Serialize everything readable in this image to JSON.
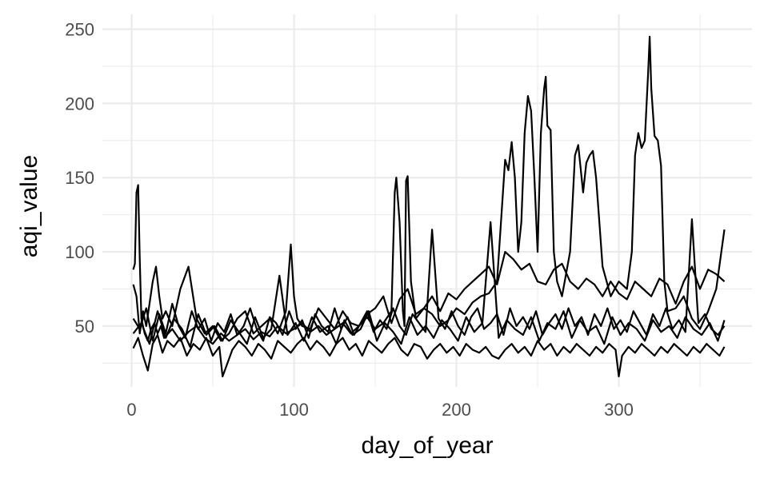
{
  "chart_data": {
    "type": "line",
    "title": "",
    "xlabel": "day_of_year",
    "ylabel": "aqi_value",
    "xlim": [
      -18,
      382
    ],
    "ylim": [
      9,
      260
    ],
    "x_ticks": [
      0,
      100,
      200,
      300
    ],
    "y_ticks": [
      50,
      100,
      150,
      200,
      250
    ],
    "x_tick_labels": [
      "0",
      "100",
      "200",
      "300"
    ],
    "y_tick_labels": [
      "50",
      "100",
      "150",
      "200",
      "250"
    ],
    "grid": true,
    "legend": "none",
    "line_color": "#000000",
    "series": [
      {
        "x": [
          1,
          2,
          3,
          4,
          5,
          6,
          8,
          10,
          12,
          14,
          16,
          18,
          20,
          25,
          30,
          35,
          40,
          45,
          50,
          55,
          60,
          65,
          70,
          75,
          80,
          85,
          90,
          95,
          100,
          105,
          110,
          115,
          120,
          125,
          130,
          135,
          140,
          145,
          150,
          155,
          160,
          162,
          163,
          165,
          167,
          168,
          169,
          170,
          172,
          175,
          180,
          185,
          190,
          195,
          200,
          205,
          210,
          215,
          220,
          225,
          230,
          232,
          234,
          236,
          238,
          240,
          242,
          244,
          246,
          248,
          250,
          252,
          254,
          255,
          256,
          258,
          260,
          262,
          265,
          270,
          273,
          275,
          278,
          280,
          282,
          284,
          286,
          288,
          290,
          295,
          300,
          305,
          308,
          310,
          312,
          314,
          316,
          318,
          319,
          320,
          322,
          324,
          326,
          328,
          330,
          335,
          340,
          345,
          350,
          355,
          360,
          365
        ],
        "y": [
          88,
          92,
          140,
          145,
          95,
          55,
          45,
          40,
          48,
          52,
          45,
          50,
          42,
          48,
          40,
          46,
          50,
          42,
          38,
          45,
          40,
          44,
          48,
          41,
          46,
          43,
          50,
          45,
          48,
          52,
          46,
          50,
          44,
          48,
          52,
          45,
          50,
          56,
          48,
          52,
          60,
          140,
          150,
          120,
          60,
          50,
          148,
          151,
          80,
          55,
          62,
          58,
          50,
          54,
          62,
          58,
          66,
          70,
          72,
          80,
          162,
          155,
          174,
          150,
          100,
          120,
          180,
          205,
          195,
          150,
          100,
          180,
          210,
          218,
          185,
          182,
          100,
          80,
          70,
          100,
          165,
          172,
          140,
          160,
          165,
          168,
          150,
          120,
          90,
          70,
          80,
          75,
          100,
          165,
          180,
          170,
          175,
          220,
          245,
          210,
          178,
          175,
          158,
          80,
          60,
          62,
          70,
          55,
          48,
          60,
          75,
          115
        ]
      },
      {
        "x": [
          1,
          3,
          5,
          7,
          9,
          11,
          13,
          15,
          17,
          19,
          21,
          25,
          30,
          35,
          40,
          45,
          50,
          55,
          60,
          65,
          70,
          75,
          80,
          85,
          90,
          95,
          98,
          100,
          102,
          105,
          110,
          115,
          120,
          125,
          130,
          135,
          140,
          145,
          150,
          155,
          160,
          165,
          170,
          175,
          180,
          185,
          190,
          195,
          200,
          205,
          210,
          215,
          220,
          225,
          230,
          235,
          240,
          245,
          250,
          255,
          260,
          265,
          270,
          275,
          280,
          285,
          290,
          295,
          300,
          305,
          310,
          315,
          320,
          325,
          330,
          335,
          340,
          345,
          350,
          355,
          360,
          365
        ],
        "y": [
          78,
          70,
          45,
          60,
          50,
          65,
          80,
          90,
          70,
          55,
          60,
          50,
          75,
          90,
          55,
          45,
          50,
          40,
          45,
          55,
          60,
          45,
          50,
          55,
          45,
          60,
          105,
          70,
          55,
          50,
          48,
          62,
          55,
          48,
          60,
          52,
          50,
          58,
          62,
          70,
          52,
          68,
          75,
          58,
          62,
          70,
          60,
          72,
          68,
          75,
          80,
          85,
          90,
          78,
          100,
          95,
          88,
          92,
          80,
          78,
          88,
          92,
          80,
          75,
          82,
          78,
          70,
          80,
          72,
          68,
          80,
          75,
          70,
          82,
          78,
          65,
          80,
          90,
          75,
          88,
          85,
          80
        ]
      },
      {
        "x": [
          1,
          4,
          7,
          10,
          13,
          16,
          19,
          22,
          26,
          30,
          34,
          38,
          42,
          46,
          50,
          54,
          56,
          58,
          62,
          66,
          70,
          74,
          78,
          82,
          86,
          90,
          94,
          98,
          102,
          106,
          110,
          114,
          118,
          122,
          126,
          130,
          134,
          138,
          142,
          146,
          150,
          154,
          158,
          162,
          166,
          170,
          174,
          178,
          182,
          186,
          190,
          194,
          198,
          202,
          206,
          210,
          214,
          218,
          222,
          226,
          230,
          234,
          238,
          242,
          246,
          250,
          254,
          258,
          262,
          266,
          270,
          274,
          278,
          282,
          286,
          290,
          294,
          298,
          300,
          302,
          306,
          310,
          314,
          318,
          322,
          326,
          330,
          334,
          338,
          342,
          346,
          350,
          354,
          358,
          362,
          365
        ],
        "y": [
          35,
          42,
          30,
          20,
          38,
          44,
          32,
          40,
          36,
          42,
          30,
          38,
          34,
          42,
          30,
          36,
          16,
          22,
          34,
          40,
          36,
          30,
          38,
          34,
          28,
          40,
          36,
          32,
          38,
          42,
          34,
          40,
          36,
          30,
          38,
          42,
          34,
          38,
          30,
          40,
          36,
          32,
          38,
          42,
          34,
          30,
          38,
          36,
          28,
          34,
          38,
          32,
          36,
          30,
          38,
          34,
          32,
          36,
          30,
          28,
          34,
          38,
          32,
          36,
          30,
          40,
          34,
          38,
          30,
          36,
          32,
          38,
          34,
          30,
          36,
          32,
          38,
          34,
          16,
          30,
          36,
          32,
          38,
          34,
          30,
          36,
          32,
          38,
          34,
          30,
          36,
          32,
          38,
          34,
          30,
          36
        ]
      },
      {
        "x": [
          1,
          5,
          9,
          13,
          17,
          21,
          25,
          29,
          33,
          37,
          41,
          45,
          49,
          53,
          57,
          61,
          65,
          69,
          73,
          77,
          81,
          85,
          89,
          93,
          97,
          101,
          105,
          109,
          113,
          117,
          121,
          125,
          129,
          133,
          137,
          141,
          145,
          149,
          153,
          157,
          161,
          165,
          169,
          173,
          177,
          181,
          185,
          189,
          193,
          197,
          201,
          205,
          209,
          213,
          217,
          221,
          225,
          229,
          233,
          237,
          241,
          245,
          249,
          253,
          257,
          261,
          265,
          269,
          273,
          277,
          281,
          285,
          289,
          293,
          297,
          301,
          305,
          309,
          313,
          317,
          321,
          325,
          329,
          333,
          337,
          341,
          345,
          349,
          353,
          357,
          361,
          365
        ],
        "y": [
          55,
          48,
          62,
          40,
          58,
          45,
          65,
          50,
          42,
          60,
          48,
          55,
          40,
          52,
          46,
          58,
          44,
          50,
          62,
          48,
          40,
          56,
          52,
          44,
          60,
          48,
          54,
          42,
          58,
          50,
          46,
          62,
          48,
          56,
          44,
          52,
          60,
          46,
          54,
          48,
          62,
          50,
          44,
          58,
          52,
          46,
          115,
          55,
          48,
          60,
          50,
          44,
          56,
          62,
          48,
          52,
          58,
          44,
          62,
          50,
          56,
          48,
          60,
          44,
          52,
          58,
          48,
          62,
          50,
          56,
          44,
          58,
          50,
          62,
          48,
          54,
          46,
          60,
          52,
          44,
          58,
          50,
          62,
          48,
          54,
          46,
          122,
          52,
          58,
          48,
          44,
          50
        ]
      },
      {
        "x": [
          1,
          6,
          11,
          16,
          21,
          26,
          31,
          36,
          41,
          46,
          51,
          56,
          61,
          66,
          71,
          76,
          81,
          86,
          91,
          96,
          101,
          106,
          111,
          116,
          121,
          126,
          131,
          136,
          141,
          146,
          151,
          156,
          161,
          166,
          171,
          176,
          181,
          186,
          191,
          196,
          201,
          206,
          211,
          216,
          221,
          226,
          231,
          236,
          241,
          246,
          251,
          256,
          261,
          266,
          271,
          276,
          281,
          286,
          291,
          296,
          301,
          306,
          311,
          316,
          321,
          326,
          331,
          336,
          341,
          346,
          351,
          356,
          361,
          365
        ],
        "y": [
          45,
          52,
          38,
          60,
          42,
          55,
          48,
          36,
          58,
          44,
          50,
          40,
          54,
          46,
          38,
          56,
          42,
          48,
          84,
          44,
          52,
          40,
          56,
          46,
          50,
          38,
          54,
          44,
          48,
          60,
          40,
          52,
          46,
          38,
          56,
          44,
          50,
          42,
          54,
          48,
          40,
          56,
          46,
          52,
          120,
          42,
          54,
          48,
          44,
          56,
          40,
          52,
          48,
          60,
          42,
          54,
          46,
          50,
          38,
          56,
          44,
          52,
          48,
          40,
          54,
          46,
          50,
          42,
          56,
          48,
          44,
          52,
          40,
          54
        ]
      }
    ]
  }
}
